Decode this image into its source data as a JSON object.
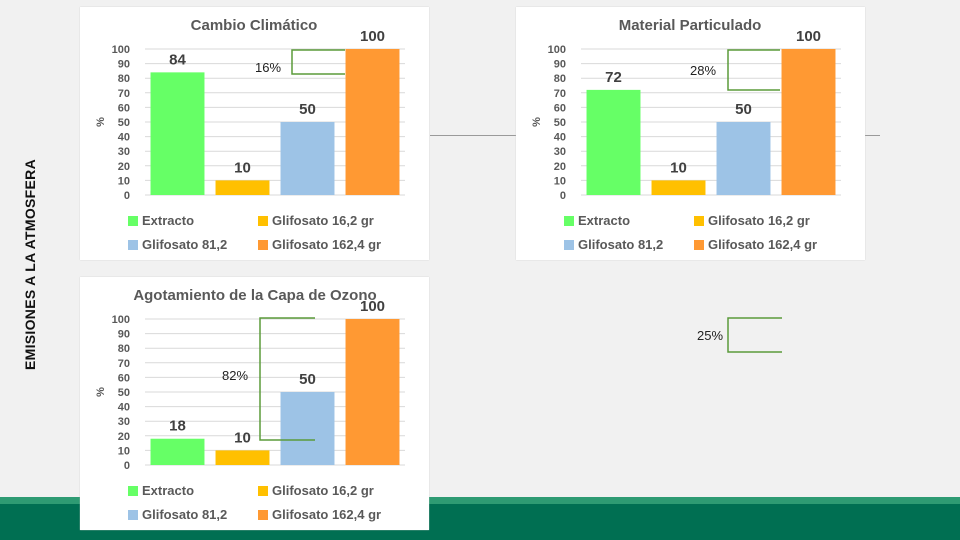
{
  "side_label": "EMISIONES A LA ATMOSFERA",
  "colors": {
    "extracto": "#66ff66",
    "glifosato_16": "#ffc000",
    "glifosato_81": "#9dc3e6",
    "glifosato_162": "#ff9933",
    "grid": "#d9d9d9",
    "bracket": "#5b9b3a",
    "footer": "#006f52"
  },
  "annotations": {
    "cambio": "16%",
    "material": "28%",
    "ozono": "82%",
    "side": "25%"
  },
  "chart_data": [
    {
      "type": "bar",
      "title": "Cambio Climático",
      "ylabel": "%",
      "ylim": [
        0,
        100
      ],
      "yticks": [
        "100",
        "90",
        "80",
        "70",
        "60",
        "50",
        "40",
        "30",
        "20",
        "10",
        "0"
      ],
      "categories": [
        "Extracto",
        "Glifosato 16,2 gr",
        "Glifosato 81,2",
        "Glifosato 162,4 gr"
      ],
      "values": [
        84,
        10,
        50,
        100
      ],
      "labels": [
        "84",
        "10",
        "50",
        "100"
      ],
      "legend": [
        "Extracto",
        "Glifosato 16,2 gr",
        "Glifosato 81,2",
        "Glifosato 162,4 gr"
      ]
    },
    {
      "type": "bar",
      "title": "Material Particulado",
      "ylabel": "%",
      "ylim": [
        0,
        100
      ],
      "yticks": [
        "100",
        "90",
        "80",
        "70",
        "60",
        "50",
        "40",
        "30",
        "20",
        "10",
        "0"
      ],
      "categories": [
        "Extracto",
        "Glifosato 16,2 gr",
        "Glifosato 81,2",
        "Glifosato 162,4 gr"
      ],
      "values": [
        72,
        10,
        50,
        100
      ],
      "labels": [
        "72",
        "10",
        "50",
        "100"
      ],
      "legend": [
        "Extracto",
        "Glifosato 16,2 gr",
        "Glifosato 81,2",
        "Glifosato 162,4 gr"
      ]
    },
    {
      "type": "bar",
      "title": "Agotamiento de la Capa de Ozono",
      "ylabel": "%",
      "ylim": [
        0,
        100
      ],
      "yticks": [
        "100",
        "90",
        "80",
        "70",
        "60",
        "50",
        "40",
        "30",
        "20",
        "10",
        "0"
      ],
      "categories": [
        "Extracto",
        "Glifosato 16,2 gr",
        "Glifosato 81,2",
        "Glifosato 162,4 gr"
      ],
      "values": [
        18,
        10,
        50,
        100
      ],
      "labels": [
        "18",
        "10",
        "50",
        "100"
      ],
      "legend": [
        "Extracto",
        "Glifosato 16,2 gr",
        "Glifosato 81,2",
        "Glifosato 162,4 gr"
      ]
    }
  ]
}
